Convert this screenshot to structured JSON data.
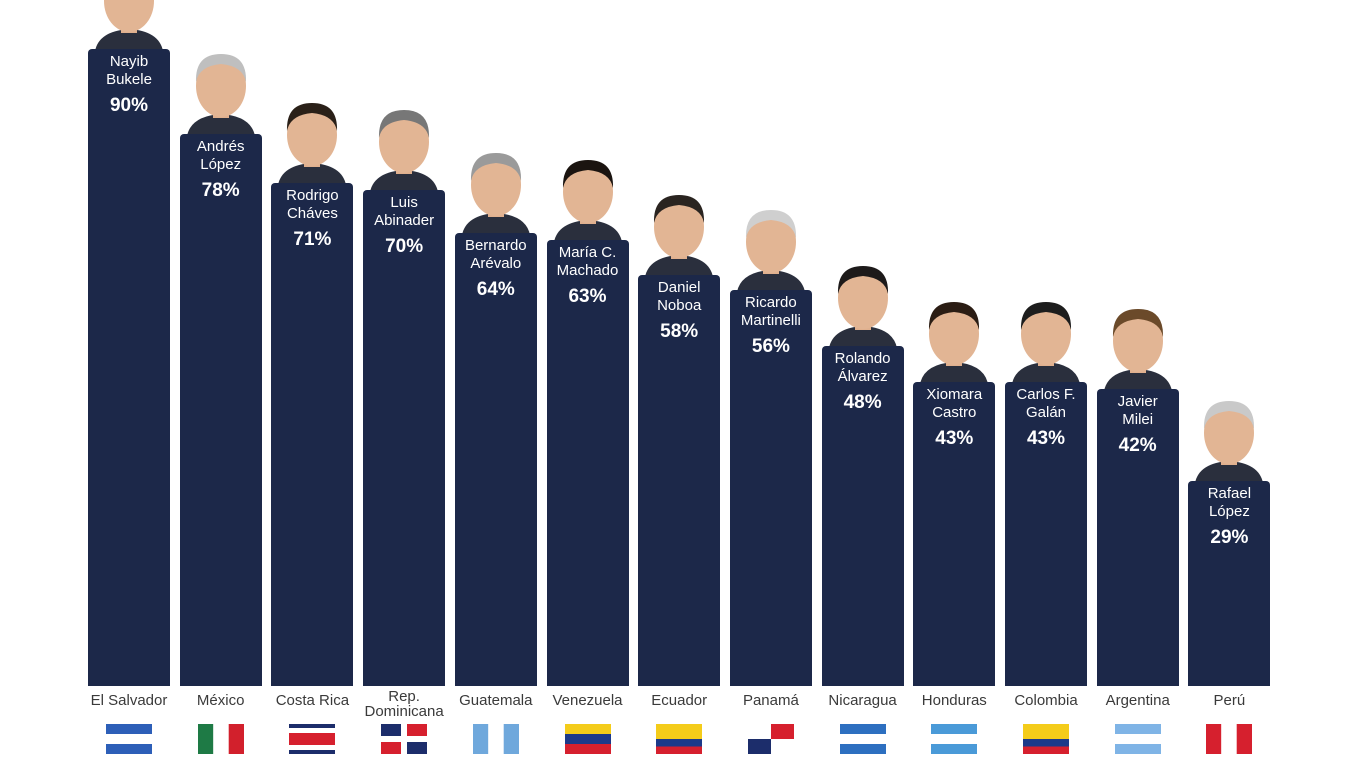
{
  "chart_data": {
    "type": "bar",
    "ylim": [
      0,
      100
    ],
    "grid": false,
    "bar_color": "#1c2849",
    "categories": [
      "El Salvador",
      "México",
      "Costa Rica",
      "Rep. Dominicana",
      "Guatemala",
      "Venezuela",
      "Ecuador",
      "Panamá",
      "Nicaragua",
      "Honduras",
      "Colombia",
      "Argentina",
      "Perú"
    ],
    "leaders": [
      [
        "Nayib",
        "Bukele"
      ],
      [
        "Andrés",
        "López"
      ],
      [
        "Rodrigo",
        "Cháves"
      ],
      [
        "Luis",
        "Abinader"
      ],
      [
        "Bernardo",
        "Arévalo"
      ],
      [
        "María C.",
        "Machado"
      ],
      [
        "Daniel",
        "Noboa"
      ],
      [
        "Ricardo",
        "Martinelli"
      ],
      [
        "Rolando",
        "Álvarez"
      ],
      [
        "Xiomara",
        "Castro"
      ],
      [
        "Carlos F.",
        "Galán"
      ],
      [
        "Javier",
        "Milei"
      ],
      [
        "Rafael",
        "López"
      ]
    ],
    "values": [
      90,
      78,
      71,
      70,
      64,
      63,
      58,
      56,
      48,
      43,
      43,
      42,
      29
    ],
    "value_labels": [
      "90%",
      "78%",
      "71%",
      "70%",
      "64%",
      "63%",
      "58%",
      "56%",
      "48%",
      "43%",
      "43%",
      "42%",
      "29%"
    ],
    "country_label_lines": [
      [
        "El Salvador"
      ],
      [
        "México"
      ],
      [
        "Costa Rica"
      ],
      [
        "Rep.",
        "Dominicana"
      ],
      [
        "Guatemala"
      ],
      [
        "Venezuela"
      ],
      [
        "Ecuador"
      ],
      [
        "Panamá"
      ],
      [
        "Nicaragua"
      ],
      [
        "Honduras"
      ],
      [
        "Colombia"
      ],
      [
        "Argentina"
      ],
      [
        "Perú"
      ]
    ],
    "flags": [
      "el-salvador",
      "mexico",
      "costa-rica",
      "dominican-republic",
      "guatemala",
      "venezuela",
      "ecuador",
      "panama",
      "nicaragua",
      "honduras",
      "colombia",
      "argentina",
      "peru"
    ]
  }
}
